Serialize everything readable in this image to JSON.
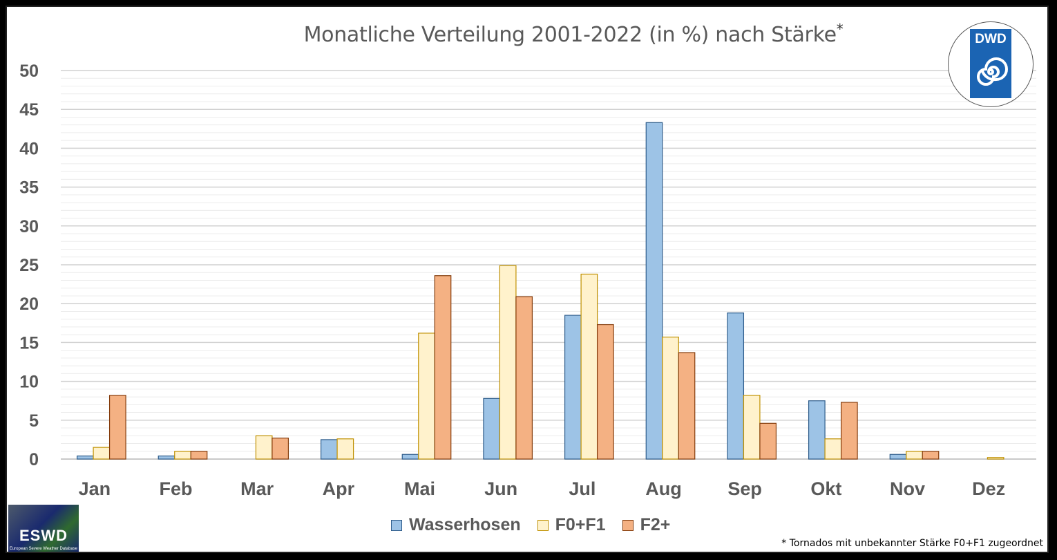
{
  "title": "Monatliche Verteilung 2001-2022 (in %)  nach Stärke",
  "title_marker": "*",
  "footnote": "* Tornados mit unbekannter Stärke F0+F1 zugeordnet",
  "logos": {
    "dwd": "DWD",
    "eswd": "ESWD",
    "eswd_sub": "European Severe Weather Database"
  },
  "legend": [
    {
      "label": "Wasserhosen",
      "fill": "#9dc3e6",
      "stroke": "#2e5c8a"
    },
    {
      "label": "F0+F1",
      "fill": "#fff2cc",
      "stroke": "#bf9000"
    },
    {
      "label": "F2+",
      "fill": "#f4b183",
      "stroke": "#843c0c"
    }
  ],
  "chart_data": {
    "type": "bar",
    "title": "Monatliche Verteilung 2001-2022 (in %)  nach Stärke",
    "categories": [
      "Jan",
      "Feb",
      "Mar",
      "Apr",
      "Mai",
      "Jun",
      "Jul",
      "Aug",
      "Sep",
      "Okt",
      "Nov",
      "Dez"
    ],
    "series": [
      {
        "name": "Wasserhosen",
        "values": [
          0.4,
          0.4,
          0,
          2.5,
          0.6,
          7.8,
          18.5,
          43.3,
          18.8,
          7.5,
          0.6,
          0
        ]
      },
      {
        "name": "F0+F1",
        "values": [
          1.5,
          1.0,
          3.0,
          2.6,
          16.2,
          24.9,
          23.8,
          15.7,
          8.2,
          2.6,
          1.0,
          0.2
        ]
      },
      {
        "name": "F2+",
        "values": [
          8.2,
          1.0,
          2.7,
          0,
          23.6,
          20.9,
          17.3,
          13.7,
          4.6,
          7.3,
          1.0,
          0
        ]
      }
    ],
    "colors": [
      "#9dc3e6",
      "#fff2cc",
      "#f4b183"
    ],
    "strokes": [
      "#2e5c8a",
      "#bf9000",
      "#843c0c"
    ],
    "xlabel": "",
    "ylabel": "",
    "ylim": [
      0,
      50
    ],
    "yticks": [
      0,
      5,
      10,
      15,
      20,
      25,
      30,
      35,
      40,
      45,
      50
    ],
    "grid": true,
    "legend_position": "bottom"
  }
}
